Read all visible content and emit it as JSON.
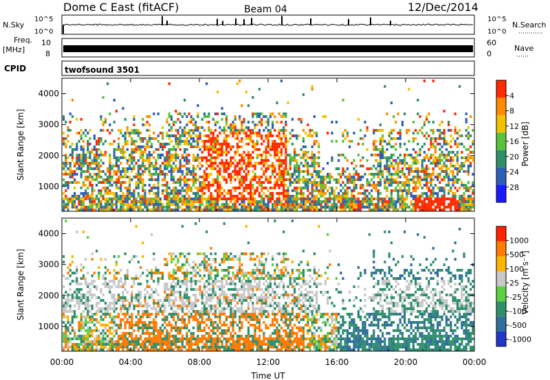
{
  "header": {
    "station": "Dome C East (fitACF)",
    "beam": "Beam 04",
    "date": "12/Dec/2014"
  },
  "status_panels": {
    "nsky_label": "N.Sky",
    "nsky_ticks": [
      "10^5",
      "10^0"
    ],
    "nsearch_label": "N.Search",
    "nsearch_ticks": [
      "10^5",
      "10^0"
    ],
    "freq_label": "Freq.",
    "freq_unit": "[MHz]",
    "freq_ticks": [
      "10",
      "8"
    ],
    "nave_label": "Nave",
    "nave_ticks": [
      "60",
      "0"
    ],
    "cpid_label": "CPID",
    "cpid_value": "twofsound 3501",
    "colors": {
      "nsky": "#000000",
      "nsearch": "#000000"
    }
  },
  "chart_data": [
    {
      "type": "heatmap",
      "name": "power",
      "ylabel": "Slant Range [km]",
      "yticks": [
        "1000",
        "2000",
        "3000",
        "4000"
      ],
      "ylim": [
        200,
        4500
      ],
      "xlim_hours": [
        0,
        24
      ],
      "colorbar": {
        "label": "Power [dB]",
        "ticks": [
          "4",
          "8",
          "12",
          "16",
          "20",
          "24",
          "28"
        ],
        "colors": [
          "#1a1aff",
          "#2e5fb8",
          "#2f8f6b",
          "#58c23a",
          "#f2c000",
          "#ff8a00",
          "#ff2a00"
        ]
      }
    },
    {
      "type": "heatmap",
      "name": "velocity",
      "ylabel": "Slant Range [km]",
      "yticks": [
        "1000",
        "2000",
        "3000",
        "4000"
      ],
      "ylim": [
        200,
        4500
      ],
      "xlim_hours": [
        0,
        24
      ],
      "colorbar": {
        "label": "Velocity [m s⁻¹]",
        "ticks": [
          "1000",
          "500",
          "100",
          "25",
          "-25",
          "-100",
          "-500",
          "-1000"
        ],
        "colors": [
          "#2038c8",
          "#2f6f9a",
          "#2f8f6b",
          "#5bd040",
          "#c8c8c8",
          "#ffb400",
          "#ff7a00",
          "#ff2200"
        ]
      }
    }
  ],
  "xaxis": {
    "label": "Time UT",
    "ticks": [
      "00:00",
      "04:00",
      "08:00",
      "12:00",
      "16:00",
      "20:00",
      "00:00"
    ]
  }
}
